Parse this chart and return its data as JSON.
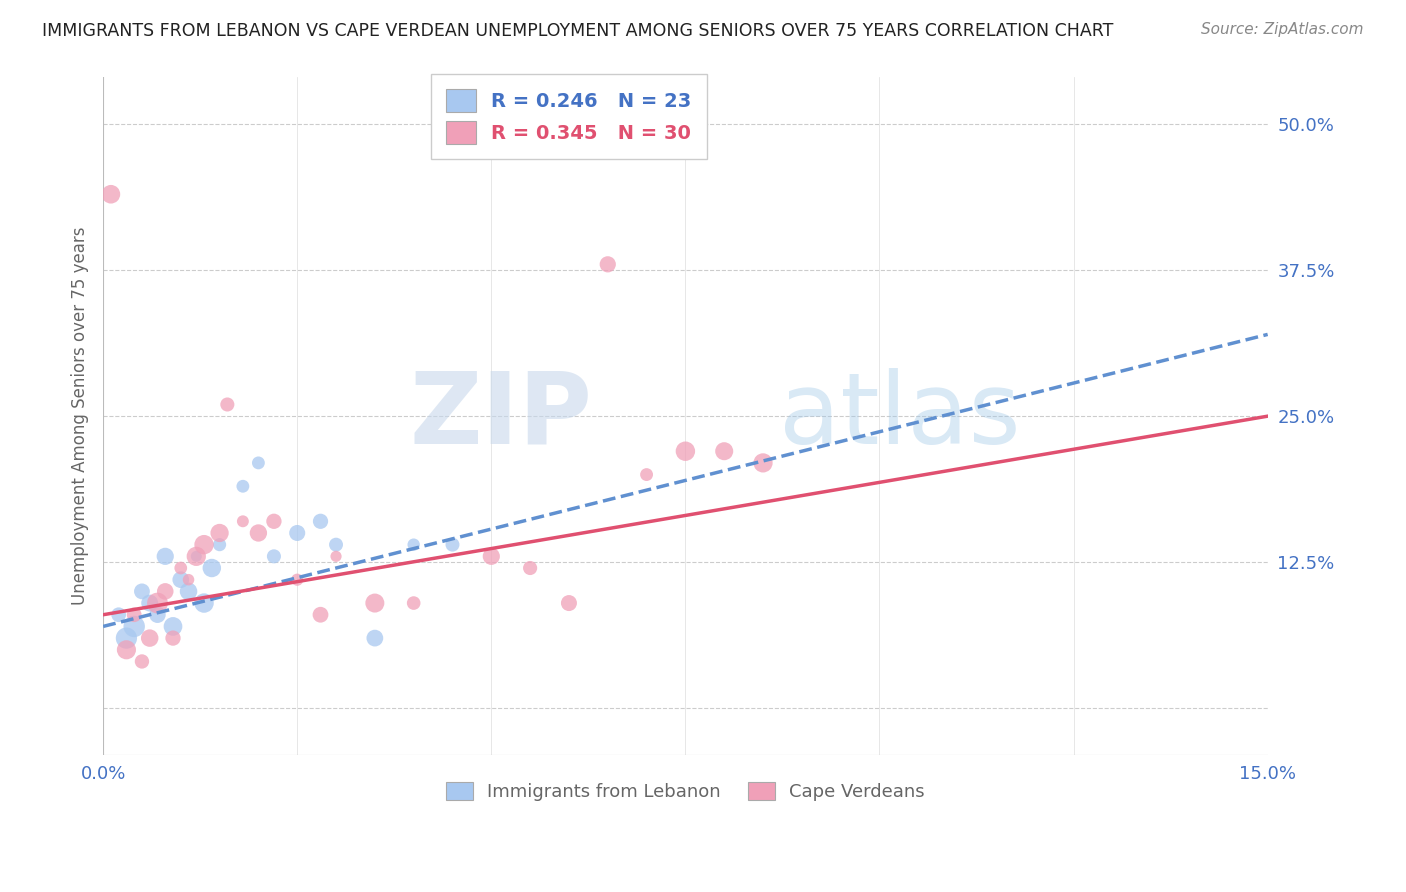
{
  "title": "IMMIGRANTS FROM LEBANON VS CAPE VERDEAN UNEMPLOYMENT AMONG SENIORS OVER 75 YEARS CORRELATION CHART",
  "source": "Source: ZipAtlas.com",
  "ylabel": "Unemployment Among Seniors over 75 years",
  "xlim": [
    0.0,
    0.15
  ],
  "ylim": [
    -0.04,
    0.54
  ],
  "xticks": [
    0.0,
    0.025,
    0.05,
    0.075,
    0.1,
    0.125,
    0.15
  ],
  "xtick_labels": [
    "0.0%",
    "",
    "",
    "",
    "",
    "",
    "15.0%"
  ],
  "ytick_labels_right": [
    "50.0%",
    "37.5%",
    "25.0%",
    "12.5%",
    ""
  ],
  "ytick_positions_right": [
    0.5,
    0.375,
    0.25,
    0.125,
    0.0
  ],
  "blue_color": "#a8c8f0",
  "pink_color": "#f0a0b8",
  "blue_line_color": "#6090d0",
  "pink_line_color": "#e05070",
  "legend_blue_R": "0.246",
  "legend_blue_N": "23",
  "legend_pink_R": "0.345",
  "legend_pink_N": "30",
  "watermark_zip": "ZIP",
  "watermark_atlas": "atlas",
  "legend_label_blue": "Immigrants from Lebanon",
  "legend_label_pink": "Cape Verdeans",
  "blue_scatter_x": [
    0.002,
    0.003,
    0.004,
    0.005,
    0.006,
    0.007,
    0.008,
    0.009,
    0.01,
    0.011,
    0.012,
    0.013,
    0.014,
    0.015,
    0.018,
    0.02,
    0.022,
    0.025,
    0.028,
    0.03,
    0.035,
    0.04,
    0.045
  ],
  "blue_scatter_y": [
    0.08,
    0.06,
    0.07,
    0.1,
    0.09,
    0.08,
    0.13,
    0.07,
    0.11,
    0.1,
    0.13,
    0.09,
    0.12,
    0.14,
    0.19,
    0.21,
    0.13,
    0.15,
    0.16,
    0.14,
    0.06,
    0.14,
    0.14
  ],
  "pink_scatter_x": [
    0.001,
    0.003,
    0.004,
    0.005,
    0.006,
    0.007,
    0.008,
    0.009,
    0.01,
    0.011,
    0.012,
    0.013,
    0.015,
    0.016,
    0.018,
    0.02,
    0.022,
    0.025,
    0.028,
    0.03,
    0.035,
    0.04,
    0.05,
    0.055,
    0.06,
    0.065,
    0.07,
    0.075,
    0.08,
    0.085
  ],
  "pink_scatter_y": [
    0.44,
    0.05,
    0.08,
    0.04,
    0.06,
    0.09,
    0.1,
    0.06,
    0.12,
    0.11,
    0.13,
    0.14,
    0.15,
    0.26,
    0.16,
    0.15,
    0.16,
    0.11,
    0.08,
    0.13,
    0.09,
    0.09,
    0.13,
    0.12,
    0.09,
    0.38,
    0.2,
    0.22,
    0.22,
    0.21
  ],
  "blue_line_x0": 0.0,
  "blue_line_y0": 0.07,
  "blue_line_x1": 0.15,
  "blue_line_y1": 0.32,
  "pink_line_x0": 0.0,
  "pink_line_y0": 0.08,
  "pink_line_x1": 0.15,
  "pink_line_y1": 0.25
}
